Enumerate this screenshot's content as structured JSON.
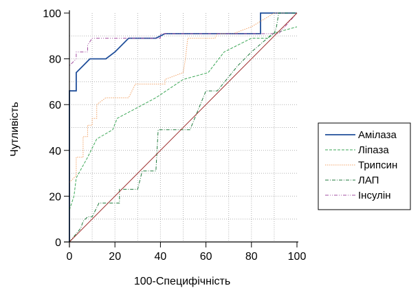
{
  "chart_data": {
    "type": "line",
    "title": "",
    "xlabel": "100-Специфічність",
    "ylabel": "Чутливість",
    "xlim": [
      0,
      100
    ],
    "ylim": [
      0,
      100
    ],
    "xticks": [
      "0",
      "20",
      "40",
      "60",
      "80",
      "100"
    ],
    "yticks": [
      "0",
      "20",
      "40",
      "60",
      "80",
      "100"
    ],
    "grid": true,
    "legend_position": "right",
    "series": [
      {
        "name": "Амілаза",
        "color": "#1f4e9a",
        "dash": "solid",
        "points": [
          [
            0,
            0
          ],
          [
            0,
            66
          ],
          [
            3,
            66
          ],
          [
            3,
            74
          ],
          [
            6,
            77
          ],
          [
            9,
            80
          ],
          [
            16,
            80
          ],
          [
            20,
            83
          ],
          [
            26,
            89
          ],
          [
            38,
            89
          ],
          [
            42,
            91
          ],
          [
            84,
            91
          ],
          [
            84,
            100
          ],
          [
            100,
            100
          ]
        ]
      },
      {
        "name": "Ліпаза",
        "color": "#3aa655",
        "dash": "dashed",
        "points": [
          [
            0,
            14
          ],
          [
            2,
            20
          ],
          [
            3,
            28
          ],
          [
            8,
            37
          ],
          [
            12,
            45
          ],
          [
            19,
            49
          ],
          [
            21,
            54
          ],
          [
            38,
            63
          ],
          [
            50,
            71
          ],
          [
            61,
            74
          ],
          [
            68,
            83
          ],
          [
            80,
            89
          ],
          [
            87,
            89
          ],
          [
            89,
            91
          ],
          [
            100,
            94
          ]
        ]
      },
      {
        "name": "Трипсин",
        "color": "#f2a265",
        "dash": "dotted",
        "points": [
          [
            0,
            26
          ],
          [
            3,
            29
          ],
          [
            3,
            37
          ],
          [
            6,
            37
          ],
          [
            6,
            46
          ],
          [
            8,
            46
          ],
          [
            8,
            51
          ],
          [
            10,
            51
          ],
          [
            10,
            54
          ],
          [
            12,
            54
          ],
          [
            12,
            60
          ],
          [
            16,
            63
          ],
          [
            26,
            63
          ],
          [
            29,
            69
          ],
          [
            42,
            69
          ],
          [
            42,
            71
          ],
          [
            50,
            74
          ],
          [
            51,
            80
          ],
          [
            52,
            89
          ],
          [
            64,
            89
          ],
          [
            65,
            91
          ],
          [
            72,
            91
          ],
          [
            80,
            94
          ],
          [
            90,
            100
          ],
          [
            100,
            100
          ]
        ]
      },
      {
        "name": "ЛАП",
        "color": "#1f7a3c",
        "dash": "dashdot",
        "points": [
          [
            0,
            0
          ],
          [
            5,
            6
          ],
          [
            6,
            9
          ],
          [
            8,
            11
          ],
          [
            10,
            11
          ],
          [
            13,
            17
          ],
          [
            22,
            17
          ],
          [
            22,
            23
          ],
          [
            30,
            23
          ],
          [
            32,
            31
          ],
          [
            38,
            31
          ],
          [
            39,
            49
          ],
          [
            53,
            49
          ],
          [
            60,
            66
          ],
          [
            65,
            66
          ],
          [
            74,
            77
          ],
          [
            80,
            83
          ],
          [
            87,
            89
          ],
          [
            90,
            91
          ],
          [
            91,
            94
          ],
          [
            92,
            100
          ],
          [
            100,
            100
          ]
        ]
      },
      {
        "name": "Інсулін",
        "color": "#a24ea0",
        "dash": "dashdotdot",
        "points": [
          [
            0,
            0
          ],
          [
            0,
            77
          ],
          [
            3,
            80
          ],
          [
            3,
            83
          ],
          [
            8,
            83
          ],
          [
            8,
            86
          ],
          [
            10,
            89
          ],
          [
            40,
            89
          ],
          [
            40,
            91
          ],
          [
            92,
            91
          ],
          [
            100,
            100
          ]
        ]
      },
      {
        "name": "",
        "color": "#9c2a2a",
        "dash": "solid",
        "points": [
          [
            0,
            0
          ],
          [
            100,
            100
          ]
        ]
      }
    ]
  }
}
